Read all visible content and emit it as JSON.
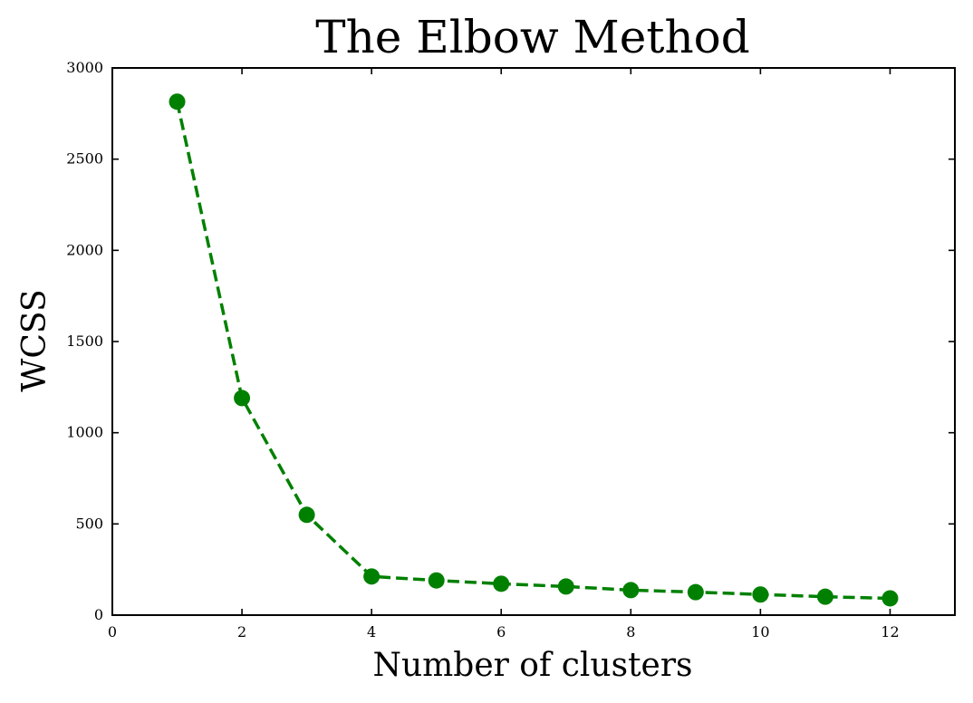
{
  "chart_data": {
    "type": "line",
    "title": "The Elbow Method",
    "xlabel": "Number of clusters",
    "ylabel": "WCSS",
    "xlim": [
      0,
      13
    ],
    "ylim": [
      0,
      3000
    ],
    "xticks": [
      0,
      2,
      4,
      6,
      8,
      10,
      12
    ],
    "yticks": [
      0,
      500,
      1000,
      1500,
      2000,
      2500,
      3000
    ],
    "grid": false,
    "series": [
      {
        "x": [
          1,
          2,
          3,
          4,
          5,
          6,
          7,
          8,
          9,
          10,
          11,
          12
        ],
        "values": [
          2815,
          1190,
          550,
          212,
          190,
          172,
          157,
          137,
          126,
          113,
          101,
          92
        ],
        "color": "#008000",
        "line_style": "dashed",
        "marker": "circle"
      }
    ]
  }
}
